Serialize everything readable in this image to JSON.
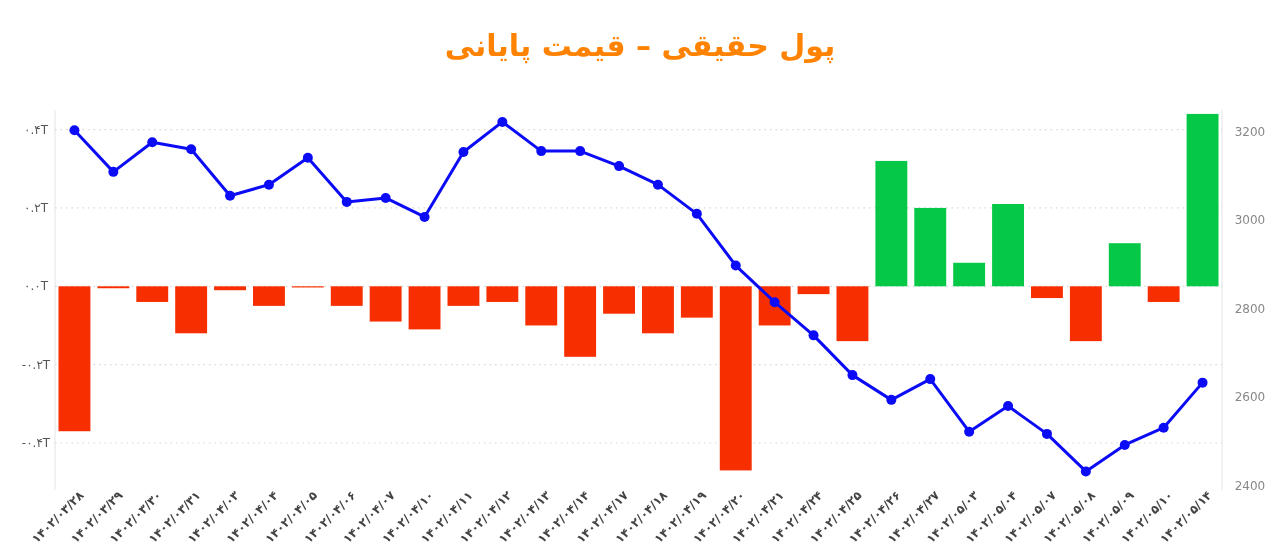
{
  "chart_data": {
    "type": "bar",
    "title": "پول حقیقی – قیمت پایانی",
    "categories": [
      "۱۴۰۲/۰۳/۲۸",
      "۱۴۰۲/۰۳/۲۹",
      "۱۴۰۲/۰۳/۳۰",
      "۱۴۰۲/۰۳/۳۱",
      "۱۴۰۲/۰۴/۰۳",
      "۱۴۰۲/۰۴/۰۴",
      "۱۴۰۲/۰۴/۰۵",
      "۱۴۰۲/۰۴/۰۶",
      "۱۴۰۲/۰۴/۰۷",
      "۱۴۰۲/۰۴/۱۰",
      "۱۴۰۲/۰۴/۱۱",
      "۱۴۰۲/۰۴/۱۲",
      "۱۴۰۲/۰۴/۱۳",
      "۱۴۰۲/۰۴/۱۴",
      "۱۴۰۲/۰۴/۱۷",
      "۱۴۰۲/۰۴/۱۸",
      "۱۴۰۲/۰۴/۱۹",
      "۱۴۰۲/۰۴/۲۰",
      "۱۴۰۲/۰۴/۲۱",
      "۱۴۰۲/۰۴/۲۴",
      "۱۴۰۲/۰۴/۲۵",
      "۱۴۰۲/۰۴/۲۶",
      "۱۴۰۲/۰۴/۲۷",
      "۱۴۰۲/۰۵/۰۳",
      "۱۴۰۲/۰۵/۰۴",
      "۱۴۰۲/۰۵/۰۷",
      "۱۴۰۲/۰۵/۰۸",
      "۱۴۰۲/۰۵/۰۹",
      "۱۴۰۲/۰۵/۱۰",
      "۱۴۰۲/۰۵/۱۴"
    ],
    "series": [
      {
        "values": [
          -0.37,
          -0.005,
          -0.04,
          -0.12,
          -0.01,
          -0.05,
          -0.003,
          -0.05,
          -0.09,
          -0.11,
          -0.05,
          -0.04,
          -0.1,
          -0.18,
          -0.07,
          -0.12,
          -0.08,
          -0.47,
          -0.1,
          -0.02,
          -0.14,
          0.32,
          0.2,
          0.06,
          0.21,
          -0.03,
          -0.14,
          0.11,
          -0.04,
          0.44
        ],
        "colors": [
          "#f72f00",
          "#f72f00",
          "#f72f00",
          "#f72f00",
          "#f72f00",
          "#f72f00",
          "#f72f00",
          "#f72f00",
          "#f72f00",
          "#f72f00",
          "#f72f00",
          "#f72f00",
          "#f72f00",
          "#f72f00",
          "#f72f00",
          "#f72f00",
          "#f72f00",
          "#f72f00",
          "#f72f00",
          "#f72f00",
          "#f72f00",
          "#05c846",
          "#05c846",
          "#05c846",
          "#05c846",
          "#f72f00",
          "#f72f00",
          "#05c846",
          "#f72f00",
          "#05c846"
        ]
      },
      {
        "type": "line",
        "axis": "y2",
        "color": "#0b0bf5",
        "values": [
          3204,
          3110,
          3177,
          3161,
          3056,
          3081,
          3142,
          3042,
          3051,
          3008,
          3155,
          3223,
          3157,
          3157,
          3123,
          3081,
          3015,
          2898,
          2815,
          2740,
          2650,
          2594,
          2641,
          2522,
          2580,
          2517,
          2432,
          2492,
          2531,
          2633
        ]
      }
    ],
    "yticks": [
      {
        "value": -0.4,
        "label": "-۰.۴T"
      },
      {
        "value": -0.2,
        "label": "-۰.۲T"
      },
      {
        "value": 0,
        "label": "۰.۰T"
      },
      {
        "value": 0.2,
        "label": "۰.۲T"
      },
      {
        "value": 0.4,
        "label": "۰.۴T"
      }
    ],
    "ylim": [
      -0.52,
      0.45
    ],
    "y2lim": [
      2390,
      3250
    ],
    "y2ticks": [
      2400,
      2600,
      2800,
      3000,
      3200
    ],
    "grid": "y",
    "marker": "circle"
  }
}
